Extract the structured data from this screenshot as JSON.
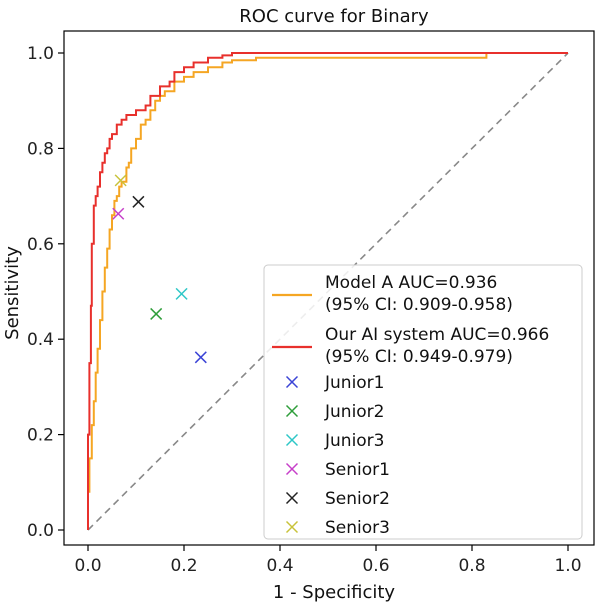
{
  "chart_data": {
    "type": "line",
    "title": "ROC curve for Binary",
    "xlabel": "1 - Specificity",
    "ylabel": "Sensitivity",
    "xlim": [
      0.0,
      1.0
    ],
    "ylim": [
      0.0,
      1.0
    ],
    "xticks": [
      "0.0",
      "0.2",
      "0.4",
      "0.6",
      "0.8",
      "1.0"
    ],
    "yticks": [
      "0.0",
      "0.2",
      "0.4",
      "0.6",
      "0.8",
      "1.0"
    ],
    "grid": false,
    "legend_position": "lower-right",
    "series": [
      {
        "name": "Model A AUC=0.936",
        "name_line2": "(95% CI: 0.909-0.958)",
        "color": "#f5a623",
        "x": [
          0.0,
          0.0,
          0.003,
          0.003,
          0.008,
          0.008,
          0.012,
          0.012,
          0.016,
          0.016,
          0.02,
          0.02,
          0.025,
          0.025,
          0.03,
          0.03,
          0.035,
          0.035,
          0.04,
          0.04,
          0.045,
          0.045,
          0.05,
          0.05,
          0.055,
          0.055,
          0.06,
          0.06,
          0.065,
          0.065,
          0.07,
          0.07,
          0.08,
          0.08,
          0.085,
          0.085,
          0.09,
          0.09,
          0.1,
          0.1,
          0.11,
          0.11,
          0.12,
          0.12,
          0.13,
          0.13,
          0.14,
          0.14,
          0.15,
          0.15,
          0.16,
          0.16,
          0.18,
          0.18,
          0.2,
          0.2,
          0.22,
          0.22,
          0.25,
          0.25,
          0.28,
          0.28,
          0.3,
          0.3,
          0.35,
          0.35,
          0.4,
          0.4,
          0.45,
          0.45,
          0.55,
          0.55,
          0.83,
          0.83,
          1.0
        ],
        "y": [
          0.0,
          0.08,
          0.08,
          0.15,
          0.15,
          0.22,
          0.22,
          0.27,
          0.27,
          0.33,
          0.33,
          0.38,
          0.38,
          0.44,
          0.44,
          0.5,
          0.5,
          0.55,
          0.55,
          0.59,
          0.59,
          0.63,
          0.63,
          0.66,
          0.66,
          0.69,
          0.69,
          0.7,
          0.7,
          0.72,
          0.72,
          0.73,
          0.73,
          0.76,
          0.76,
          0.77,
          0.77,
          0.8,
          0.8,
          0.82,
          0.82,
          0.85,
          0.85,
          0.86,
          0.86,
          0.88,
          0.88,
          0.9,
          0.9,
          0.91,
          0.91,
          0.92,
          0.92,
          0.94,
          0.94,
          0.95,
          0.95,
          0.96,
          0.96,
          0.97,
          0.97,
          0.98,
          0.98,
          0.985,
          0.985,
          0.99,
          0.99,
          0.99,
          0.99,
          0.99,
          0.99,
          0.99,
          0.99,
          1.0,
          1.0
        ]
      },
      {
        "name": "Our AI system AUC=0.966",
        "name_line2": "(95% CI: 0.949-0.979)",
        "color": "#e8302c",
        "x": [
          0.0,
          0.0,
          0.003,
          0.003,
          0.006,
          0.006,
          0.008,
          0.008,
          0.012,
          0.012,
          0.016,
          0.016,
          0.02,
          0.02,
          0.025,
          0.025,
          0.03,
          0.03,
          0.035,
          0.035,
          0.04,
          0.04,
          0.045,
          0.045,
          0.05,
          0.05,
          0.06,
          0.06,
          0.07,
          0.07,
          0.08,
          0.08,
          0.1,
          0.1,
          0.12,
          0.12,
          0.13,
          0.13,
          0.15,
          0.15,
          0.17,
          0.17,
          0.18,
          0.18,
          0.2,
          0.2,
          0.22,
          0.22,
          0.25,
          0.25,
          0.28,
          0.28,
          0.3,
          0.3,
          1.0
        ],
        "y": [
          0.0,
          0.2,
          0.2,
          0.35,
          0.35,
          0.47,
          0.47,
          0.6,
          0.6,
          0.68,
          0.68,
          0.7,
          0.7,
          0.72,
          0.72,
          0.75,
          0.75,
          0.77,
          0.77,
          0.79,
          0.79,
          0.8,
          0.8,
          0.82,
          0.82,
          0.83,
          0.83,
          0.85,
          0.85,
          0.86,
          0.86,
          0.87,
          0.87,
          0.88,
          0.88,
          0.89,
          0.89,
          0.91,
          0.91,
          0.93,
          0.93,
          0.94,
          0.94,
          0.96,
          0.96,
          0.97,
          0.97,
          0.98,
          0.98,
          0.99,
          0.99,
          0.995,
          0.995,
          1.0,
          1.0
        ]
      }
    ],
    "points": [
      {
        "name": "Junior1",
        "x": 0.235,
        "y": 0.362,
        "color": "#3b44d6"
      },
      {
        "name": "Junior2",
        "x": 0.142,
        "y": 0.453,
        "color": "#2e9e3a"
      },
      {
        "name": "Junior3",
        "x": 0.195,
        "y": 0.495,
        "color": "#2ec7c7"
      },
      {
        "name": "Senior1",
        "x": 0.063,
        "y": 0.663,
        "color": "#c63fc9"
      },
      {
        "name": "Senior2",
        "x": 0.105,
        "y": 0.688,
        "color": "#222222"
      },
      {
        "name": "Senior3",
        "x": 0.068,
        "y": 0.733,
        "color": "#c8c23a"
      }
    ],
    "diagonal": {
      "color": "#888888"
    }
  }
}
